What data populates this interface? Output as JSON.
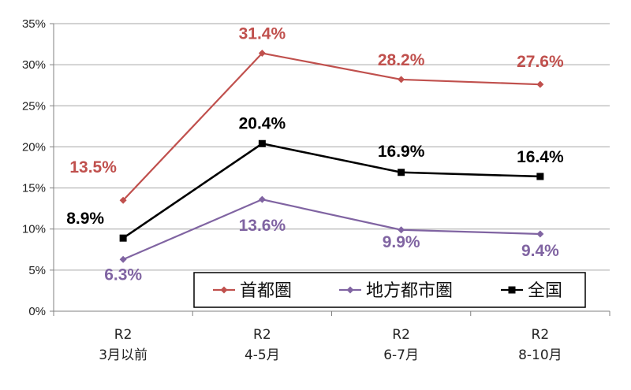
{
  "chart_data": {
    "type": "line",
    "categories": [
      [
        "R2",
        "3月以前"
      ],
      [
        "R2",
        "4-5月"
      ],
      [
        "R2",
        "6-7月"
      ],
      [
        "R2",
        "8-10月"
      ]
    ],
    "ylim": [
      0,
      35
    ],
    "yticks": [
      0,
      5,
      10,
      15,
      20,
      25,
      30,
      35
    ],
    "ytick_labels": [
      "0%",
      "5%",
      "10%",
      "15%",
      "20%",
      "25%",
      "30%",
      "35%"
    ],
    "grid": true,
    "legend_position": "bottom-right",
    "series": [
      {
        "name": "首都圏",
        "color": "#c0504d",
        "marker": "diamond",
        "values": [
          13.5,
          31.4,
          28.2,
          27.6
        ],
        "labels": [
          "13.5%",
          "31.4%",
          "28.2%",
          "27.6%"
        ]
      },
      {
        "name": "地方都市圏",
        "color": "#8064a2",
        "marker": "diamond",
        "values": [
          6.3,
          13.6,
          9.9,
          9.4
        ],
        "labels": [
          "6.3%",
          "13.6%",
          "9.9%",
          "9.4%"
        ]
      },
      {
        "name": "全国",
        "color": "#000000",
        "marker": "square",
        "values": [
          8.9,
          20.4,
          16.9,
          16.4
        ],
        "labels": [
          "8.9%",
          "20.4%",
          "16.9%",
          "16.4%"
        ]
      }
    ]
  }
}
